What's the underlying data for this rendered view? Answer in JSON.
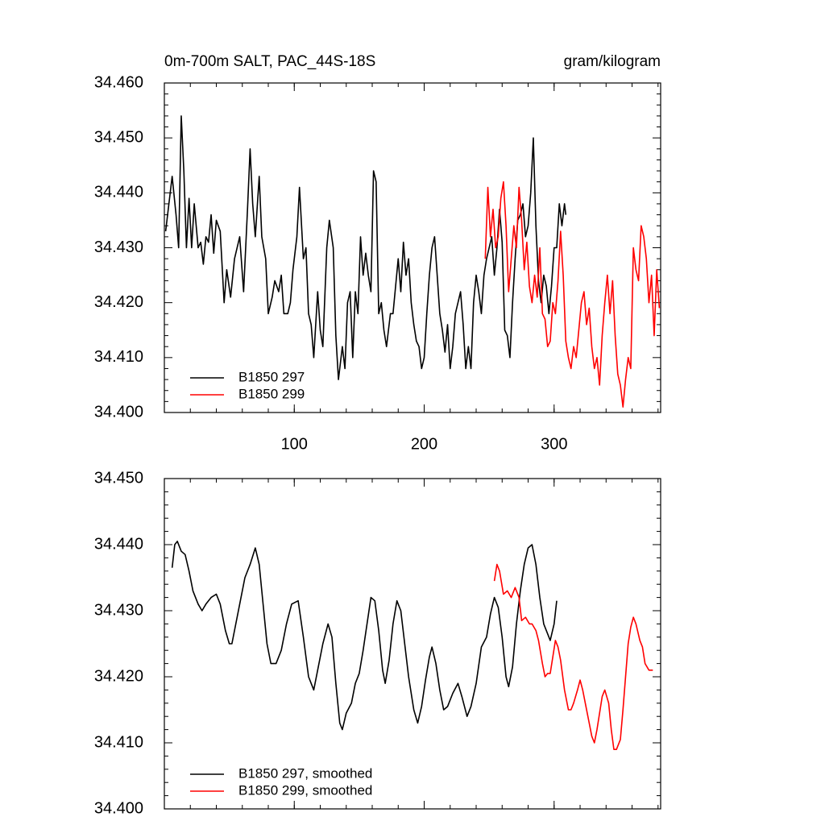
{
  "chart_data": [
    {
      "type": "line",
      "title": "0m-700m SALT, PAC_44S-18S",
      "units": "gram/kilogram",
      "xlim": [
        0,
        382
      ],
      "xticks": [
        100,
        200,
        300
      ],
      "ylim": [
        34.4,
        34.46
      ],
      "yticks": [
        {
          "value": 34.4,
          "label": "34.400"
        },
        {
          "value": 34.41,
          "label": "34.410"
        },
        {
          "value": 34.42,
          "label": "34.420"
        },
        {
          "value": 34.43,
          "label": "34.430"
        },
        {
          "value": 34.44,
          "label": "34.440"
        },
        {
          "value": 34.45,
          "label": "34.450"
        },
        {
          "value": 34.46,
          "label": "34.460"
        }
      ],
      "legend": "lower left",
      "series": [
        {
          "name": "B1850 297",
          "color": "#000000",
          "x": [
            1,
            3,
            6,
            9,
            11,
            13,
            15,
            17,
            19,
            21,
            23,
            26,
            28,
            30,
            32,
            34,
            36,
            38,
            40,
            43,
            46,
            48,
            51,
            54,
            58,
            61,
            64,
            66,
            68,
            70,
            73,
            75,
            78,
            80,
            83,
            85,
            88,
            90,
            92,
            95,
            97,
            99,
            102,
            104,
            107,
            109,
            111,
            113,
            115,
            118,
            120,
            122,
            125,
            127,
            130,
            132,
            134,
            137,
            139,
            141,
            143,
            145,
            147,
            149,
            151,
            153,
            155,
            157,
            159,
            161,
            163,
            165,
            167,
            169,
            171,
            174,
            176,
            178,
            180,
            182,
            184,
            186,
            188,
            190,
            192,
            194,
            196,
            198,
            200,
            202,
            204,
            206,
            208,
            210,
            212,
            214,
            216,
            218,
            220,
            222,
            224,
            226,
            228,
            230,
            232,
            234,
            236,
            238,
            240,
            242,
            244,
            246,
            248,
            250,
            252,
            254,
            256,
            258,
            260,
            262,
            264,
            266,
            268,
            270,
            272,
            274,
            276,
            278,
            280,
            282,
            284,
            286,
            288,
            290,
            292,
            294,
            296,
            298,
            300,
            302,
            304,
            306,
            308,
            309
          ],
          "values": [
            34.433,
            34.437,
            34.443,
            34.436,
            34.43,
            34.454,
            34.444,
            34.43,
            34.439,
            34.43,
            34.438,
            34.43,
            34.431,
            34.427,
            34.432,
            34.431,
            34.436,
            34.429,
            34.435,
            34.433,
            34.42,
            34.426,
            34.421,
            34.428,
            34.432,
            34.422,
            34.437,
            34.448,
            34.438,
            34.432,
            34.443,
            34.432,
            34.428,
            34.418,
            34.421,
            34.424,
            34.422,
            34.425,
            34.418,
            34.418,
            34.42,
            34.426,
            34.432,
            34.441,
            34.428,
            34.43,
            34.418,
            34.416,
            34.41,
            34.422,
            34.415,
            34.412,
            34.43,
            34.435,
            34.43,
            34.414,
            34.406,
            34.412,
            34.408,
            34.42,
            34.422,
            34.41,
            34.422,
            34.418,
            34.432,
            34.425,
            34.429,
            34.425,
            34.422,
            34.444,
            34.442,
            34.418,
            34.42,
            34.415,
            34.412,
            34.418,
            34.418,
            34.423,
            34.428,
            34.422,
            34.431,
            34.425,
            34.428,
            34.42,
            34.416,
            34.413,
            34.412,
            34.408,
            34.41,
            34.418,
            34.425,
            34.43,
            34.432,
            34.425,
            34.418,
            34.415,
            34.411,
            34.416,
            34.408,
            34.412,
            34.418,
            34.42,
            34.422,
            34.416,
            34.408,
            34.412,
            34.408,
            34.42,
            34.425,
            34.422,
            34.418,
            34.425,
            34.428,
            34.43,
            34.432,
            34.425,
            34.43,
            34.437,
            34.431,
            34.415,
            34.414,
            34.41,
            34.42,
            34.428,
            34.435,
            34.436,
            34.438,
            34.432,
            34.434,
            34.44,
            34.45,
            34.434,
            34.424,
            34.42,
            34.425,
            34.423,
            34.418,
            34.423,
            34.43,
            34.43,
            34.438,
            34.434,
            34.438,
            34.436
          ]
        },
        {
          "name": "B1850 299",
          "color": "#ff0000",
          "x": [
            247,
            249,
            251,
            253,
            255,
            257,
            259,
            261,
            263,
            265,
            267,
            269,
            271,
            273,
            275,
            277,
            279,
            281,
            283,
            285,
            287,
            289,
            291,
            293,
            295,
            297,
            299,
            301,
            303,
            305,
            307,
            309,
            311,
            313,
            315,
            317,
            319,
            321,
            323,
            325,
            327,
            329,
            331,
            333,
            335,
            337,
            339,
            341,
            343,
            345,
            347,
            349,
            351,
            353,
            355,
            357,
            359,
            361,
            363,
            365,
            367,
            369,
            371,
            373,
            375,
            377,
            379,
            381
          ],
          "values": [
            34.428,
            34.441,
            34.432,
            34.437,
            34.43,
            34.432,
            34.439,
            34.442,
            34.434,
            34.422,
            34.428,
            34.434,
            34.43,
            34.441,
            34.435,
            34.426,
            34.431,
            34.423,
            34.42,
            34.425,
            34.421,
            34.43,
            34.418,
            34.417,
            34.412,
            34.413,
            34.42,
            34.418,
            34.424,
            34.433,
            34.425,
            34.413,
            34.41,
            34.408,
            34.412,
            34.41,
            34.415,
            34.42,
            34.422,
            34.416,
            34.419,
            34.412,
            34.408,
            34.41,
            34.405,
            34.414,
            34.42,
            34.425,
            34.418,
            34.424,
            34.414,
            34.407,
            34.405,
            34.401,
            34.406,
            34.41,
            34.408,
            34.43,
            34.426,
            34.424,
            34.434,
            34.432,
            34.428,
            34.42,
            34.425,
            34.414,
            34.426,
            34.419
          ]
        }
      ]
    },
    {
      "type": "line",
      "xlim": [
        0,
        382
      ],
      "ylim": [
        34.4,
        34.45
      ],
      "yticks": [
        {
          "value": 34.4,
          "label": "34.400"
        },
        {
          "value": 34.41,
          "label": "34.410"
        },
        {
          "value": 34.42,
          "label": "34.420"
        },
        {
          "value": 34.43,
          "label": "34.430"
        },
        {
          "value": 34.44,
          "label": "34.440"
        },
        {
          "value": 34.45,
          "label": "34.450"
        }
      ],
      "legend": "lower left",
      "series": [
        {
          "name": "B1850 297, smoothed",
          "color": "#000000",
          "x": [
            6,
            8,
            10,
            13,
            16,
            19,
            22,
            26,
            29,
            32,
            36,
            40,
            43,
            47,
            50,
            52,
            55,
            58,
            62,
            66,
            70,
            73,
            76,
            79,
            82,
            86,
            90,
            94,
            98,
            103,
            107,
            111,
            115,
            118,
            122,
            126,
            129,
            132,
            135,
            137,
            140,
            144,
            147,
            150,
            153,
            156,
            159,
            162,
            165,
            168,
            170,
            173,
            176,
            179,
            182,
            185,
            188,
            192,
            195,
            198,
            201,
            204,
            206,
            209,
            212,
            215,
            218,
            222,
            226,
            229,
            233,
            236,
            240,
            244,
            248,
            251,
            254,
            257,
            260,
            263,
            265,
            268,
            271,
            274,
            277,
            280,
            283,
            286,
            289,
            292,
            295,
            297,
            300,
            302
          ],
          "values": [
            34.4365,
            34.44,
            34.4405,
            34.439,
            34.4385,
            34.436,
            34.433,
            34.431,
            34.43,
            34.431,
            34.432,
            34.4325,
            34.431,
            34.427,
            34.425,
            34.425,
            34.428,
            34.431,
            34.435,
            34.437,
            34.4395,
            34.437,
            34.431,
            34.425,
            34.422,
            34.422,
            34.424,
            34.428,
            34.431,
            34.4315,
            34.426,
            34.42,
            34.418,
            34.421,
            34.425,
            34.428,
            34.426,
            34.419,
            34.413,
            34.412,
            34.4145,
            34.416,
            34.419,
            34.4205,
            34.424,
            34.428,
            34.432,
            34.4315,
            34.427,
            34.421,
            34.419,
            34.4225,
            34.428,
            34.4315,
            34.43,
            34.425,
            34.42,
            34.415,
            34.413,
            34.4155,
            34.4195,
            34.423,
            34.4245,
            34.422,
            34.418,
            34.415,
            34.4155,
            34.4175,
            34.419,
            34.417,
            34.414,
            34.4155,
            34.419,
            34.4245,
            34.426,
            34.4295,
            34.432,
            34.4305,
            34.426,
            34.42,
            34.4185,
            34.4215,
            34.428,
            34.433,
            34.437,
            34.4395,
            34.44,
            34.437,
            34.432,
            34.428,
            34.4265,
            34.4255,
            34.428,
            34.4315
          ]
        },
        {
          "name": "B1850 299, smoothed",
          "color": "#ff0000",
          "x": [
            254,
            256,
            258,
            261,
            264,
            267,
            270,
            273,
            275,
            278,
            281,
            283,
            286,
            288,
            291,
            293,
            295,
            297,
            299,
            301,
            303,
            305,
            308,
            311,
            313,
            315,
            318,
            320,
            322,
            324,
            327,
            329,
            331,
            333,
            335,
            337,
            339,
            342,
            344,
            346,
            348,
            351,
            353,
            355,
            357,
            359,
            361,
            363,
            366,
            368,
            370,
            373,
            376
          ],
          "values": [
            34.4345,
            34.437,
            34.436,
            34.4325,
            34.433,
            34.432,
            34.4335,
            34.432,
            34.4285,
            34.429,
            34.428,
            34.428,
            34.427,
            34.4255,
            34.422,
            34.42,
            34.4205,
            34.4205,
            34.423,
            34.4255,
            34.4245,
            34.4225,
            34.418,
            34.415,
            34.415,
            34.416,
            34.418,
            34.4195,
            34.418,
            34.416,
            34.413,
            34.411,
            34.41,
            34.412,
            34.4145,
            34.417,
            34.418,
            34.416,
            34.412,
            34.409,
            34.409,
            34.4105,
            34.415,
            34.42,
            34.425,
            34.4275,
            34.429,
            34.428,
            34.4255,
            34.4245,
            34.422,
            34.421,
            34.421
          ]
        }
      ]
    }
  ]
}
